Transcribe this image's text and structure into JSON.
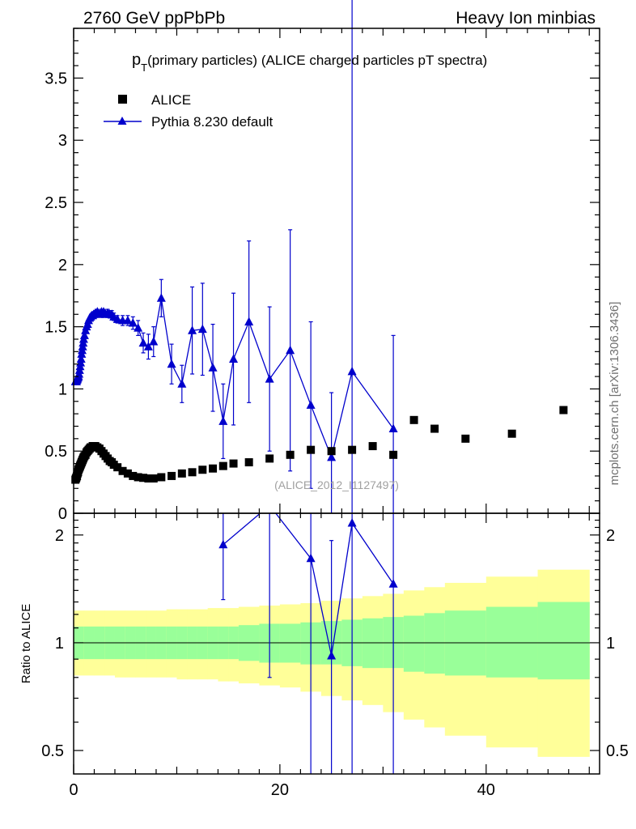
{
  "header": {
    "left": "2760 GeV ppPbPb",
    "right": "Heavy Ion minbias"
  },
  "side_credit": "mcplots.cern.ch [arXiv:1306.3436]",
  "chart_data": {
    "type": "scatter",
    "title": "p_T(primary particles) (ALICE charged particles pT spectra)",
    "title_main": "p",
    "title_sub": "T",
    "title_rest": "(primary particles) (ALICE charged particles pT spectra)",
    "watermark": "(ALICE_2012_I1127497)",
    "xlim": [
      0,
      51
    ],
    "legend_position": "top-left",
    "main_panel": {
      "ylim": [
        0,
        3.9
      ],
      "yticks": [
        0,
        0.5,
        1,
        1.5,
        2,
        2.5,
        3,
        3.5
      ],
      "ytick_labels": [
        "0",
        "0.5",
        "1",
        "1.5",
        "2",
        "2.5",
        "3",
        "3.5"
      ]
    },
    "ratio_panel": {
      "ylabel": "Ratio to ALICE",
      "ylim": [
        0.43,
        2.3
      ],
      "log_scale": true,
      "yticks": [
        0.5,
        1,
        2
      ],
      "ytick_labels": [
        "0.5",
        "1",
        "2"
      ],
      "reference_line": 1
    },
    "xticks": [
      0,
      20,
      40
    ],
    "xtick_labels": [
      "0",
      "20",
      "40"
    ],
    "series": [
      {
        "name": "ALICE",
        "marker": "square",
        "color": "#000000",
        "x": [
          0.175,
          0.225,
          0.275,
          0.325,
          0.375,
          0.425,
          0.475,
          0.525,
          0.575,
          0.625,
          0.675,
          0.725,
          0.775,
          0.825,
          0.875,
          0.925,
          0.975,
          1.05,
          1.15,
          1.25,
          1.35,
          1.45,
          1.55,
          1.65,
          1.75,
          1.85,
          1.95,
          2.1,
          2.3,
          2.5,
          2.7,
          2.9,
          3.1,
          3.3,
          3.5,
          3.7,
          3.9,
          4.25,
          4.75,
          5.25,
          5.75,
          6.25,
          6.75,
          7.25,
          7.75,
          8.5,
          9.5,
          10.5,
          11.5,
          12.5,
          13.5,
          14.5,
          15.5,
          17.0,
          19.0,
          21.0,
          23.0,
          25.0,
          27.0,
          29.0,
          31.0,
          33.0,
          35.0,
          38.0,
          42.5,
          47.5
        ],
        "y": [
          0.27,
          0.28,
          0.29,
          0.3,
          0.32,
          0.33,
          0.35,
          0.36,
          0.37,
          0.38,
          0.39,
          0.4,
          0.41,
          0.42,
          0.43,
          0.44,
          0.45,
          0.46,
          0.47,
          0.49,
          0.5,
          0.51,
          0.52,
          0.53,
          0.53,
          0.54,
          0.54,
          0.54,
          0.53,
          0.52,
          0.5,
          0.48,
          0.46,
          0.44,
          0.42,
          0.41,
          0.39,
          0.37,
          0.34,
          0.32,
          0.3,
          0.29,
          0.285,
          0.28,
          0.28,
          0.29,
          0.3,
          0.32,
          0.33,
          0.35,
          0.36,
          0.38,
          0.4,
          0.41,
          0.44,
          0.47,
          0.51,
          0.5,
          0.51,
          0.54,
          0.47,
          0.75,
          0.68,
          0.6,
          0.64,
          0.83
        ]
      },
      {
        "name": "Pythia 8.230 default",
        "marker": "triangle",
        "color": "#0000cc",
        "x": [
          0.175,
          0.225,
          0.275,
          0.325,
          0.375,
          0.425,
          0.475,
          0.525,
          0.575,
          0.625,
          0.675,
          0.725,
          0.775,
          0.825,
          0.875,
          0.925,
          0.975,
          1.05,
          1.15,
          1.25,
          1.35,
          1.45,
          1.55,
          1.65,
          1.75,
          1.85,
          1.95,
          2.1,
          2.3,
          2.5,
          2.7,
          2.9,
          3.1,
          3.3,
          3.5,
          3.7,
          3.9,
          4.25,
          4.75,
          5.25,
          5.75,
          6.25,
          6.75,
          7.25,
          7.75,
          8.5,
          9.5,
          10.5,
          11.5,
          12.5,
          13.5,
          14.5,
          15.5,
          17.0,
          19.0,
          21.0,
          23.0,
          25.0,
          27.0,
          31.0
        ],
        "y": [
          1.06,
          1.06,
          1.06,
          1.07,
          1.08,
          1.09,
          1.1,
          1.12,
          1.15,
          1.18,
          1.21,
          1.24,
          1.28,
          1.31,
          1.34,
          1.37,
          1.4,
          1.43,
          1.47,
          1.5,
          1.52,
          1.55,
          1.57,
          1.58,
          1.59,
          1.59,
          1.6,
          1.61,
          1.62,
          1.6,
          1.62,
          1.62,
          1.6,
          1.61,
          1.6,
          1.6,
          1.58,
          1.56,
          1.55,
          1.55,
          1.53,
          1.49,
          1.37,
          1.34,
          1.38,
          1.73,
          1.2,
          1.04,
          1.47,
          1.48,
          1.17,
          0.74,
          1.24,
          1.54,
          1.08,
          1.31,
          0.87,
          0.45,
          1.14,
          0.68
        ],
        "yerr": [
          0.01,
          0.01,
          0.01,
          0.01,
          0.01,
          0.01,
          0.01,
          0.01,
          0.01,
          0.01,
          0.01,
          0.01,
          0.01,
          0.01,
          0.01,
          0.01,
          0.01,
          0.01,
          0.01,
          0.01,
          0.01,
          0.01,
          0.01,
          0.01,
          0.01,
          0.01,
          0.01,
          0.02,
          0.02,
          0.02,
          0.02,
          0.02,
          0.02,
          0.03,
          0.03,
          0.03,
          0.03,
          0.03,
          0.04,
          0.04,
          0.05,
          0.06,
          0.08,
          0.1,
          0.12,
          0.15,
          0.16,
          0.15,
          0.35,
          0.37,
          0.35,
          0.3,
          0.53,
          0.65,
          0.58,
          0.97,
          0.67,
          0.52,
          8.0,
          0.75
        ]
      }
    ],
    "ratio_series": {
      "name": "Pythia 8.230 default / ALICE",
      "x": [
        14.5,
        19.0,
        23.0,
        25.0,
        27.0,
        31.0
      ],
      "y": [
        1.88,
        2.42,
        1.72,
        0.92,
        2.16,
        1.46
      ],
      "ylo": [
        1.32,
        0.8,
        0.37,
        0.3,
        0.1,
        0.3
      ],
      "yhi": [
        2.5,
        3.0,
        3.5,
        1.93,
        5.0,
        4.0
      ]
    },
    "uncertainty_bands": {
      "edges": [
        0,
        1,
        2,
        3,
        4,
        5,
        6,
        7,
        8,
        9,
        10,
        11,
        12,
        13,
        14,
        15,
        16,
        18,
        20,
        22,
        24,
        26,
        28,
        30,
        32,
        34,
        36,
        40,
        45,
        50
      ],
      "inner_lo": [
        0.9,
        0.9,
        0.9,
        0.9,
        0.9,
        0.9,
        0.9,
        0.9,
        0.9,
        0.9,
        0.9,
        0.9,
        0.9,
        0.9,
        0.9,
        0.9,
        0.89,
        0.88,
        0.88,
        0.87,
        0.87,
        0.86,
        0.85,
        0.85,
        0.83,
        0.82,
        0.81,
        0.8,
        0.79
      ],
      "inner_hi": [
        1.11,
        1.11,
        1.11,
        1.11,
        1.11,
        1.11,
        1.11,
        1.11,
        1.11,
        1.11,
        1.11,
        1.11,
        1.11,
        1.11,
        1.11,
        1.11,
        1.12,
        1.13,
        1.13,
        1.14,
        1.15,
        1.16,
        1.17,
        1.18,
        1.19,
        1.21,
        1.23,
        1.26,
        1.3
      ],
      "outer_lo": [
        0.81,
        0.81,
        0.81,
        0.81,
        0.8,
        0.8,
        0.8,
        0.8,
        0.8,
        0.8,
        0.79,
        0.79,
        0.79,
        0.79,
        0.78,
        0.78,
        0.77,
        0.76,
        0.75,
        0.73,
        0.71,
        0.69,
        0.67,
        0.64,
        0.61,
        0.58,
        0.55,
        0.51,
        0.48
      ],
      "outer_hi": [
        1.23,
        1.23,
        1.23,
        1.23,
        1.23,
        1.23,
        1.23,
        1.23,
        1.23,
        1.24,
        1.24,
        1.24,
        1.24,
        1.25,
        1.25,
        1.25,
        1.26,
        1.27,
        1.28,
        1.29,
        1.31,
        1.33,
        1.35,
        1.37,
        1.4,
        1.43,
        1.47,
        1.53,
        1.6
      ],
      "inner_color": "#99ff99",
      "outer_color": "#ffff99"
    }
  }
}
